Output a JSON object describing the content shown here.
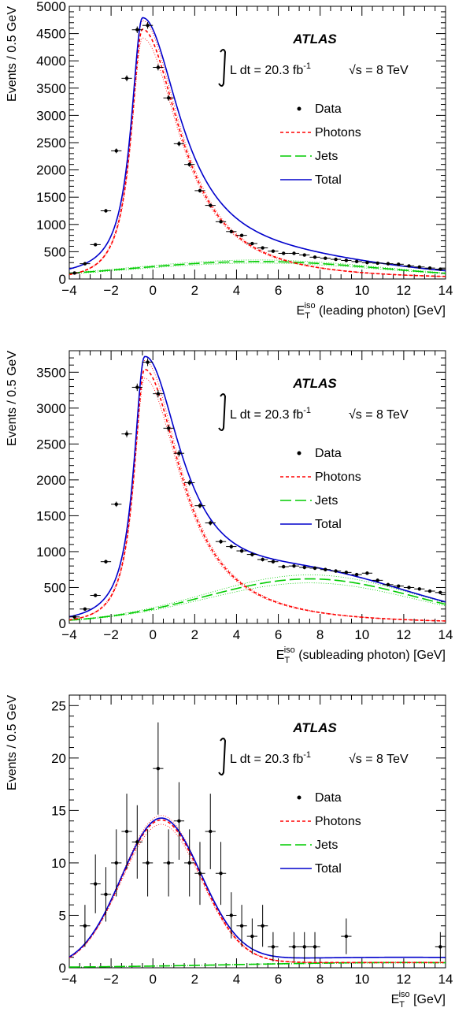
{
  "annotations": {
    "experiment": "ATLAS",
    "lumi_text": "L dt = 20.3 fb",
    "lumi_sup": "-1",
    "sqrt_sym": "√",
    "energy_text": "s = 8 TeV"
  },
  "legend": {
    "data": "Data",
    "photons": "Photons",
    "jets": "Jets",
    "total": "Total"
  },
  "colors": {
    "data": "#000000",
    "photons": "#ff0000",
    "jets": "#00cc00",
    "total": "#0000cc"
  },
  "chart_data": [
    {
      "type": "line",
      "title": "",
      "ylabel": "Events / 0.5 GeV",
      "xlabel_main": "E",
      "xlabel_sub": "T",
      "xlabel_sup": "iso",
      "xlabel_rest": " (leading photon) [GeV]",
      "xlim": [
        -4,
        14
      ],
      "ylim": [
        0,
        5000
      ],
      "xticks": [
        -4,
        -2,
        0,
        2,
        4,
        6,
        8,
        10,
        12,
        14
      ],
      "yticks": [
        0,
        500,
        1000,
        1500,
        2000,
        2500,
        3000,
        3500,
        4000,
        4500,
        5000
      ],
      "data": {
        "x": [
          -3.75,
          -3.25,
          -2.75,
          -2.25,
          -1.75,
          -1.25,
          -0.75,
          -0.25,
          0.25,
          0.75,
          1.25,
          1.75,
          2.25,
          2.75,
          3.25,
          3.75,
          4.25,
          4.75,
          5.25,
          5.75,
          6.25,
          6.75,
          7.25,
          7.75,
          8.25,
          8.75,
          9.25,
          9.75,
          10.25,
          10.75,
          11.25,
          11.75,
          12.25,
          12.75,
          13.25,
          13.75
        ],
        "y": [
          110,
          280,
          630,
          1250,
          2350,
          3680,
          4570,
          4650,
          3880,
          3320,
          2480,
          2100,
          1620,
          1350,
          1050,
          870,
          800,
          650,
          570,
          510,
          470,
          470,
          440,
          400,
          380,
          360,
          340,
          320,
          300,
          290,
          280,
          270,
          240,
          220,
          200,
          180
        ]
      },
      "photons": {
        "mu": -0.5,
        "sigma_left": 0.9,
        "sigma_right": 1.8,
        "amplitude": 4580,
        "tail": 0.0,
        "label_note": ""
      },
      "jets": {
        "mu": 5.0,
        "sigma": 6.0,
        "amplitude": 320
      }
    },
    {
      "type": "line",
      "title": "",
      "ylabel": "Events / 0.5 GeV",
      "xlabel_main": "E",
      "xlabel_sub": "T",
      "xlabel_sup": "iso",
      "xlabel_rest": " (subleading photon) [GeV]",
      "xlim": [
        -4,
        14
      ],
      "ylim": [
        0,
        3800
      ],
      "xticks": [
        -4,
        -2,
        0,
        2,
        4,
        6,
        8,
        10,
        12,
        14
      ],
      "yticks": [
        0,
        500,
        1000,
        1500,
        2000,
        2500,
        3000,
        3500
      ],
      "data": {
        "x": [
          -3.75,
          -3.25,
          -2.75,
          -2.25,
          -1.75,
          -1.25,
          -0.75,
          -0.25,
          0.25,
          0.75,
          1.25,
          1.75,
          2.25,
          2.75,
          3.25,
          3.75,
          4.25,
          4.75,
          5.25,
          5.75,
          6.25,
          6.75,
          7.25,
          7.75,
          8.25,
          8.75,
          9.25,
          9.75,
          10.25,
          10.75,
          11.25,
          11.75,
          12.25,
          12.75,
          13.25,
          13.75
        ],
        "y": [
          90,
          200,
          390,
          860,
          1660,
          2640,
          3290,
          3640,
          3200,
          2720,
          2370,
          1960,
          1640,
          1400,
          1140,
          1070,
          1010,
          960,
          890,
          860,
          790,
          800,
          780,
          770,
          750,
          730,
          710,
          680,
          700,
          600,
          540,
          520,
          500,
          480,
          450,
          430
        ]
      },
      "photons": {
        "mu": -0.4,
        "sigma_left": 0.85,
        "sigma_right": 1.75,
        "amplitude": 3540,
        "tail": 0.0,
        "label_note": ""
      },
      "jets": {
        "mu": 7.5,
        "sigma": 5.0,
        "amplitude": 620
      }
    },
    {
      "type": "line",
      "title": "",
      "ylabel": "Events / 0.5 GeV",
      "xlabel_main": "E",
      "xlabel_sub": "T",
      "xlabel_sup": "iso",
      "xlabel_rest": "  [GeV]",
      "xlim": [
        -4,
        14
      ],
      "ylim": [
        0,
        26
      ],
      "xticks": [
        -4,
        -2,
        0,
        2,
        4,
        6,
        8,
        10,
        12,
        14
      ],
      "yticks": [
        0,
        5,
        10,
        15,
        20,
        25
      ],
      "data": {
        "x": [
          -3.25,
          -2.75,
          -2.25,
          -1.75,
          -1.25,
          -0.75,
          -0.25,
          0.25,
          0.75,
          1.25,
          1.75,
          2.25,
          2.75,
          3.25,
          3.75,
          4.25,
          4.75,
          5.25,
          5.75,
          6.75,
          7.25,
          7.75,
          9.25,
          13.75
        ],
        "y": [
          4,
          8,
          7,
          10,
          13,
          12,
          10,
          19,
          10,
          14,
          10,
          9,
          13,
          9,
          5,
          4,
          3,
          4,
          2,
          2,
          2,
          2,
          3,
          2
        ],
        "err": [
          2.0,
          2.8,
          2.6,
          3.2,
          3.6,
          3.5,
          3.2,
          4.4,
          3.2,
          3.7,
          3.2,
          3.0,
          3.6,
          3.0,
          2.2,
          2.0,
          1.7,
          2.0,
          1.4,
          1.4,
          1.4,
          1.4,
          1.7,
          1.4
        ]
      },
      "photons": {
        "mu": 0.4,
        "sigma_left": 1.9,
        "sigma_right": 1.9,
        "amplitude": 14.1,
        "tail": 0.5,
        "label_note": ""
      },
      "jets": {
        "mu": 12.0,
        "sigma": 8.0,
        "amplitude": 0.5
      }
    }
  ]
}
